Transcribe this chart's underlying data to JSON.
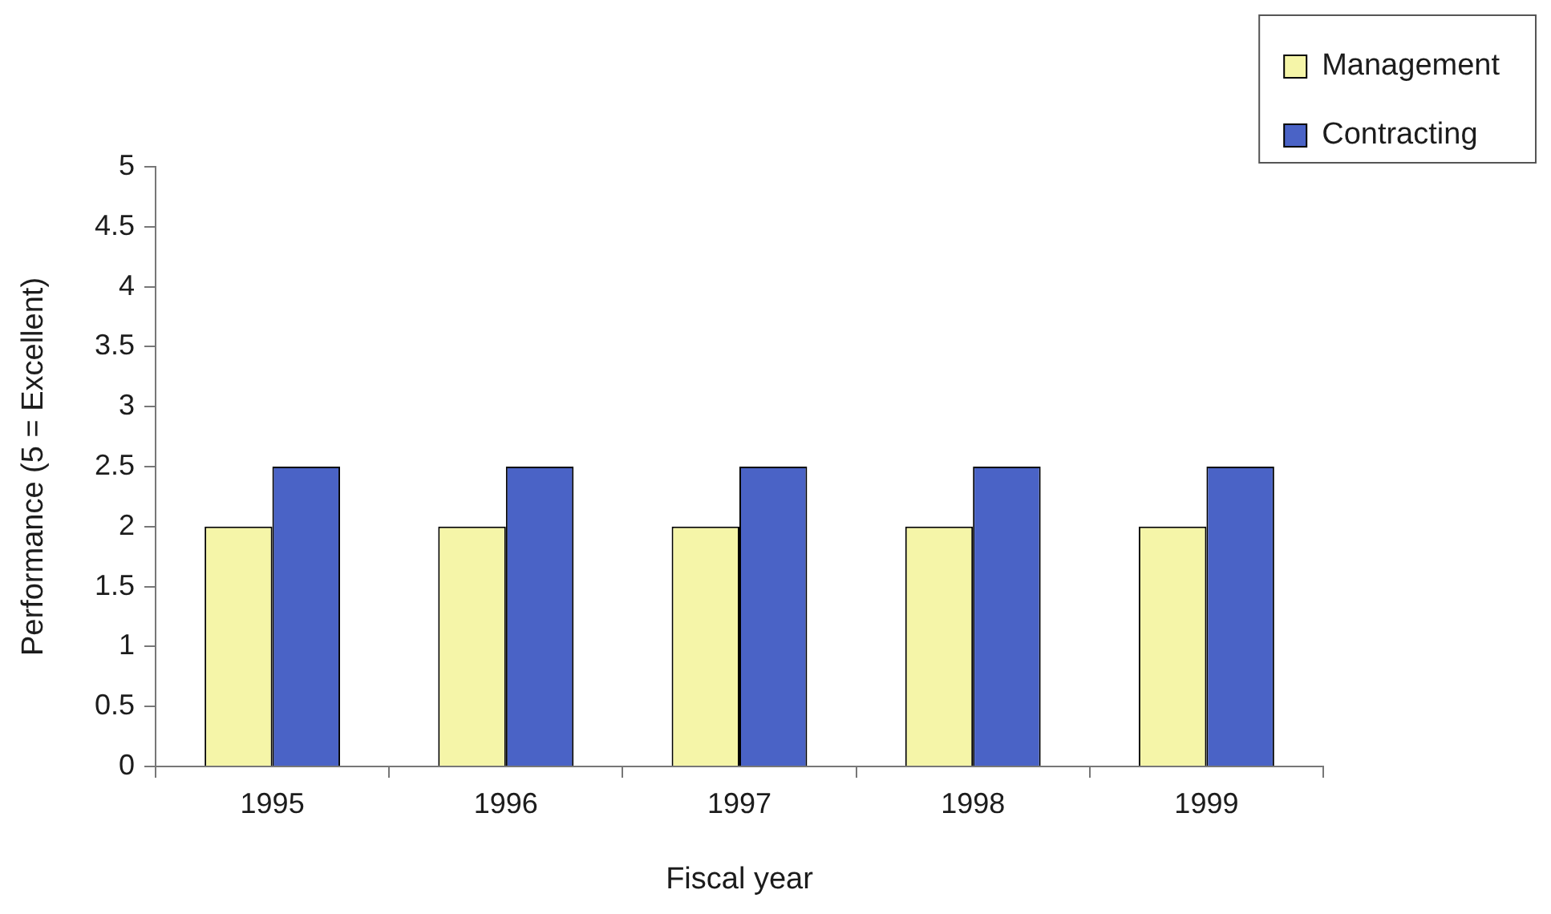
{
  "chart_data": {
    "type": "bar",
    "categories": [
      "1995",
      "1996",
      "1997",
      "1998",
      "1999"
    ],
    "series": [
      {
        "name": "Management",
        "color": "#f5f5a8",
        "values": [
          2,
          2,
          2,
          2,
          2
        ]
      },
      {
        "name": "Contracting",
        "color": "#4a63c6",
        "values": [
          2.5,
          2.5,
          2.5,
          2.5,
          2.5
        ]
      }
    ],
    "xlabel": "Fiscal year",
    "ylabel": "Performance (5 = Excellent)",
    "ylim": [
      0,
      5
    ],
    "yticks": [
      0,
      0.5,
      1,
      1.5,
      2,
      2.5,
      3,
      3.5,
      4,
      4.5,
      5
    ],
    "grid": false,
    "legend": "top right"
  }
}
